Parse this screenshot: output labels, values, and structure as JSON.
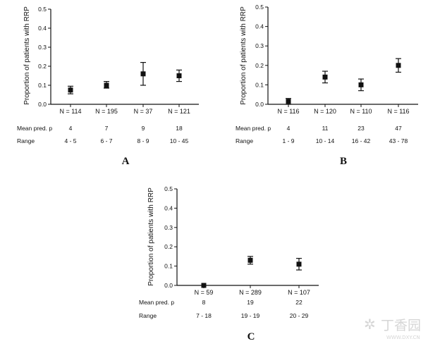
{
  "chart_data": [
    {
      "panel": "A",
      "type": "scatter",
      "ylabel": "Proportion of patients with RRP",
      "ylim": [
        0,
        0.5
      ],
      "yticks": [
        "0.0",
        "0.1",
        "0.2",
        "0.3",
        "0.4",
        "0.5"
      ],
      "categories": [
        "N = 114",
        "N = 195",
        "N = 37",
        "N = 121"
      ],
      "values": [
        0.075,
        0.1,
        0.16,
        0.15
      ],
      "err_low": [
        0.055,
        0.085,
        0.1,
        0.12
      ],
      "err_high": [
        0.095,
        0.12,
        0.22,
        0.18
      ],
      "row_labels": [
        "Mean pred. p",
        "Range"
      ],
      "mean_pred": [
        "4",
        "7",
        "9",
        "18"
      ],
      "range": [
        "4 - 5",
        "6 - 7",
        "8 - 9",
        "10 - 45"
      ]
    },
    {
      "panel": "B",
      "type": "scatter",
      "ylabel": "Proportion of patients with RRP",
      "ylim": [
        0,
        0.5
      ],
      "yticks": [
        "0.0",
        "0.1",
        "0.2",
        "0.3",
        "0.4",
        "0.5"
      ],
      "categories": [
        "N = 116",
        "N = 120",
        "N = 110",
        "N = 116"
      ],
      "values": [
        0.015,
        0.14,
        0.1,
        0.2
      ],
      "err_low": [
        0.0,
        0.11,
        0.07,
        0.165
      ],
      "err_high": [
        0.03,
        0.17,
        0.13,
        0.235
      ],
      "row_labels": [
        "Mean pred. p",
        "Range"
      ],
      "mean_pred": [
        "4",
        "11",
        "23",
        "47"
      ],
      "range": [
        "1 - 9",
        "10 - 14",
        "16 - 42",
        "43 - 78"
      ]
    },
    {
      "panel": "C",
      "type": "scatter",
      "ylabel": "Proportion of patients with RRP",
      "ylim": [
        0,
        0.5
      ],
      "yticks": [
        "0.0",
        "0.1",
        "0.2",
        "0.3",
        "0.4",
        "0.5"
      ],
      "categories": [
        "N = 59",
        "N = 289",
        "N = 107"
      ],
      "values": [
        0.0,
        0.13,
        0.11
      ],
      "err_low": [
        0.0,
        0.11,
        0.08
      ],
      "err_high": [
        0.0,
        0.15,
        0.14
      ],
      "row_labels": [
        "Mean pred. p",
        "Range"
      ],
      "mean_pred": [
        "8",
        "19",
        "22"
      ],
      "range": [
        "7 - 18",
        "19 - 19",
        "20 - 29"
      ]
    }
  ],
  "watermark": "丁香园",
  "watermark_sub": "WWW.DXY.CN"
}
